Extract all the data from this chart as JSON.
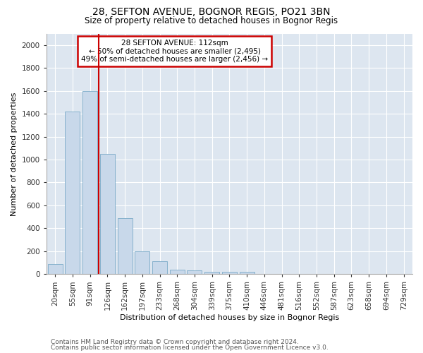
{
  "title": "28, SEFTON AVENUE, BOGNOR REGIS, PO21 3BN",
  "subtitle": "Size of property relative to detached houses in Bognor Regis",
  "xlabel": "Distribution of detached houses by size in Bognor Regis",
  "ylabel": "Number of detached properties",
  "footnote1": "Contains HM Land Registry data © Crown copyright and database right 2024.",
  "footnote2": "Contains public sector information licensed under the Open Government Licence v3.0.",
  "bar_color": "#c8d8ea",
  "bar_edgecolor": "#7aaac8",
  "annotation_box_color": "#cc0000",
  "redline_color": "#cc0000",
  "background_color": "#ffffff",
  "plot_background": "#dde6f0",
  "grid_color": "#ffffff",
  "categories": [
    "20sqm",
    "55sqm",
    "91sqm",
    "126sqm",
    "162sqm",
    "197sqm",
    "233sqm",
    "268sqm",
    "304sqm",
    "339sqm",
    "375sqm",
    "410sqm",
    "446sqm",
    "481sqm",
    "516sqm",
    "552sqm",
    "587sqm",
    "623sqm",
    "658sqm",
    "694sqm",
    "729sqm"
  ],
  "values": [
    85,
    1420,
    1600,
    1050,
    490,
    200,
    110,
    40,
    30,
    20,
    20,
    20,
    0,
    0,
    0,
    0,
    0,
    0,
    0,
    0,
    0
  ],
  "ylim": [
    0,
    2100
  ],
  "yticks": [
    0,
    200,
    400,
    600,
    800,
    1000,
    1200,
    1400,
    1600,
    1800,
    2000
  ],
  "redline_x": 2.5,
  "annotation_line1": "28 SEFTON AVENUE: 112sqm",
  "annotation_line2": "← 50% of detached houses are smaller (2,495)",
  "annotation_line3": "49% of semi-detached houses are larger (2,456) →",
  "title_fontsize": 10,
  "subtitle_fontsize": 8.5,
  "label_fontsize": 8,
  "tick_fontsize": 7.5,
  "footnote_fontsize": 6.5
}
